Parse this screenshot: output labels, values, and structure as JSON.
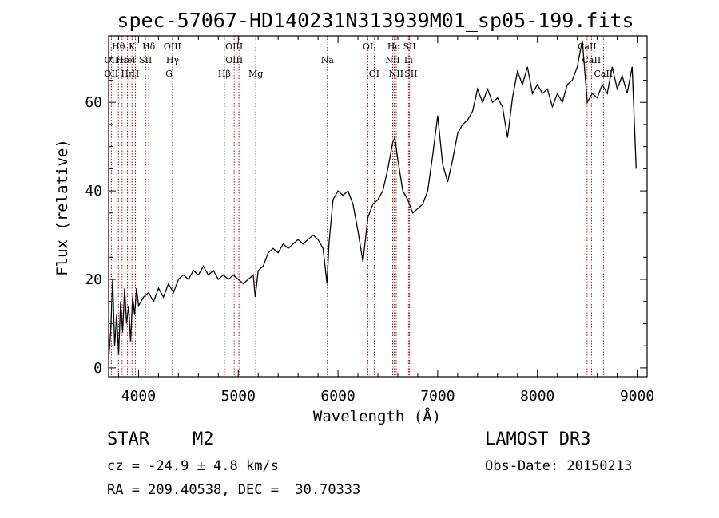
{
  "chart_data": {
    "type": "line",
    "title": "spec-57067-HD140231N313939M01_sp05-199.fits",
    "xlabel": "Wavelength (Å)",
    "ylabel": "Flux (relative)",
    "xlim": [
      3700,
      9100
    ],
    "ylim": [
      -2,
      75
    ],
    "x_ticks": [
      4000,
      5000,
      6000,
      7000,
      8000,
      9000
    ],
    "y_ticks": [
      0,
      20,
      40,
      60
    ],
    "x_tick_labels": [
      "4000",
      "5000",
      "6000",
      "7000",
      "8000",
      "9000"
    ],
    "y_tick_labels": [
      "0",
      "20",
      "40",
      "60"
    ],
    "grid": false,
    "series": [
      {
        "name": "spectrum",
        "x": [
          3700,
          3720,
          3740,
          3760,
          3780,
          3800,
          3820,
          3840,
          3860,
          3880,
          3900,
          3920,
          3940,
          3960,
          3980,
          4000,
          4050,
          4100,
          4150,
          4200,
          4250,
          4300,
          4350,
          4400,
          4450,
          4500,
          4550,
          4600,
          4650,
          4700,
          4750,
          4800,
          4850,
          4900,
          4950,
          5000,
          5050,
          5100,
          5150,
          5170,
          5200,
          5250,
          5300,
          5350,
          5400,
          5450,
          5500,
          5550,
          5600,
          5650,
          5700,
          5750,
          5800,
          5850,
          5890,
          5910,
          5950,
          6000,
          6050,
          6100,
          6150,
          6200,
          6250,
          6300,
          6350,
          6400,
          6450,
          6500,
          6550,
          6570,
          6600,
          6650,
          6700,
          6750,
          6800,
          6850,
          6900,
          6950,
          7000,
          7050,
          7100,
          7150,
          7200,
          7250,
          7300,
          7350,
          7400,
          7450,
          7500,
          7550,
          7600,
          7650,
          7700,
          7750,
          7800,
          7850,
          7900,
          7950,
          8000,
          8050,
          8100,
          8150,
          8200,
          8250,
          8300,
          8350,
          8400,
          8450,
          8500,
          8550,
          8600,
          8650,
          8700,
          8750,
          8800,
          8850,
          8900,
          8950,
          8990
        ],
        "values": [
          2,
          8,
          20,
          5,
          12,
          3,
          15,
          8,
          18,
          10,
          14,
          6,
          16,
          12,
          18,
          14,
          16,
          17,
          15,
          18,
          16,
          19,
          17,
          20,
          21,
          20,
          22,
          21,
          23,
          21,
          22,
          20,
          21,
          20,
          21,
          20,
          19,
          20,
          21,
          16,
          22,
          23,
          26,
          27,
          26,
          28,
          27,
          28,
          29,
          28,
          29,
          30,
          29,
          27,
          19,
          28,
          38,
          40,
          39,
          40,
          37,
          31,
          24,
          34,
          37,
          38,
          40,
          45,
          51,
          52,
          47,
          40,
          38,
          35,
          36,
          37,
          40,
          48,
          57,
          46,
          42,
          47,
          53,
          55,
          56,
          58,
          63,
          60,
          63,
          60,
          61,
          59,
          52,
          61,
          67,
          64,
          68,
          62,
          64,
          62,
          63,
          59,
          62,
          60,
          64,
          65,
          68,
          74,
          60,
          62,
          61,
          64,
          62,
          68,
          63,
          66,
          62,
          68,
          45
        ]
      }
    ],
    "line_markers": [
      {
        "label": "Hθ",
        "x": 3798,
        "row": 1
      },
      {
        "label": "OII",
        "x": 3727,
        "row": 2
      },
      {
        "label": "OII",
        "x": 3727,
        "row": 3
      },
      {
        "label": "Hε",
        "x": 3835,
        "row": 2
      },
      {
        "label": "Hη",
        "x": 3889,
        "row": 3
      },
      {
        "label": "K",
        "x": 3934,
        "row": 1
      },
      {
        "label": "H",
        "x": 3969,
        "row": 3
      },
      {
        "label": "HeI",
        "x": 3889,
        "row": 2
      },
      {
        "label": "SII",
        "x": 4070,
        "row": 2
      },
      {
        "label": "Hδ",
        "x": 4102,
        "row": 1
      },
      {
        "label": "OIII",
        "x": 4340,
        "row": 1
      },
      {
        "label": "Hγ",
        "x": 4341,
        "row": 2
      },
      {
        "label": "G",
        "x": 4305,
        "row": 3
      },
      {
        "label": "Hβ",
        "x": 4861,
        "row": 3
      },
      {
        "label": "OIII",
        "x": 4959,
        "row": 1
      },
      {
        "label": "OIII",
        "x": 4959,
        "row": 2
      },
      {
        "label": "Mg",
        "x": 5175,
        "row": 3
      },
      {
        "label": "Na",
        "x": 5893,
        "row": 2
      },
      {
        "label": "OI",
        "x": 6300,
        "row": 1
      },
      {
        "label": "OI",
        "x": 6363,
        "row": 3
      },
      {
        "label": "Hα",
        "x": 6563,
        "row": 1
      },
      {
        "label": "NII",
        "x": 6548,
        "row": 2
      },
      {
        "label": "NII",
        "x": 6584,
        "row": 3
      },
      {
        "label": "SII",
        "x": 6717,
        "row": 1
      },
      {
        "label": "Li",
        "x": 6707,
        "row": 2
      },
      {
        "label": "SII",
        "x": 6731,
        "row": 3
      },
      {
        "label": "CaII",
        "x": 8498,
        "row": 1
      },
      {
        "label": "CaII",
        "x": 8542,
        "row": 2
      },
      {
        "label": "CaII",
        "x": 8662,
        "row": 3
      }
    ],
    "marker_lines_x": [
      3727,
      3798,
      3835,
      3889,
      3934,
      3969,
      4070,
      4102,
      4305,
      4340,
      4861,
      4959,
      5007,
      5175,
      5893,
      6300,
      6363,
      6548,
      6563,
      6584,
      6707,
      6717,
      6731,
      8498,
      8542,
      8662
    ],
    "colors": {
      "axis": "#000000",
      "spectrum": "#000000",
      "marker_line": "#8b0000"
    }
  },
  "info": {
    "object_type": "STAR",
    "subclass": "M2",
    "survey": "LAMOST DR3",
    "cz": "cz = -24.9 ± 4.8 km/s",
    "obs_date": "Obs-Date: 20150213",
    "coords": "RA = 209.40538, DEC =  30.70333"
  }
}
